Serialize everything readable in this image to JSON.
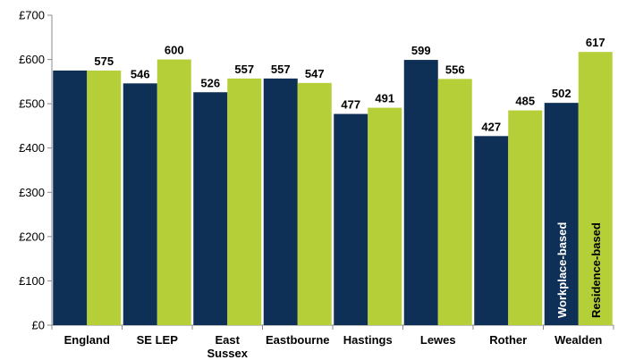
{
  "chart_data": {
    "type": "bar",
    "categories": [
      "England",
      "SE LEP",
      "East Sussex",
      "Eastbourne",
      "Hastings",
      "Lewes",
      "Rother",
      "Wealden"
    ],
    "category_lines": [
      [
        "England"
      ],
      [
        "SE LEP"
      ],
      [
        "East",
        "Sussex"
      ],
      [
        "Eastbourne"
      ],
      [
        "Hastings"
      ],
      [
        "Lewes"
      ],
      [
        "Rother"
      ],
      [
        "Wealden"
      ]
    ],
    "series": [
      {
        "name": "Workplace-based",
        "color": "#0e2f56",
        "values": [
          575,
          546,
          526,
          557,
          477,
          599,
          427,
          502
        ]
      },
      {
        "name": "Residence-based",
        "color": "#b5cf39",
        "values": [
          575,
          600,
          557,
          547,
          491,
          556,
          485,
          617
        ]
      }
    ],
    "data_labels": [
      [
        "",
        "546",
        "526",
        "557",
        "477",
        "599",
        "427",
        "502"
      ],
      [
        "575",
        "600",
        "557",
        "547",
        "491",
        "556",
        "485",
        "617"
      ]
    ],
    "ylim": [
      0,
      700
    ],
    "yticks": [
      0,
      100,
      200,
      300,
      400,
      500,
      600,
      700
    ],
    "ytick_labels": [
      "£0",
      "£100",
      "£200",
      "£300",
      "£400",
      "£500",
      "£600",
      "£700"
    ],
    "title": "",
    "xlabel": "",
    "ylabel": "",
    "grid": false,
    "legend": "inside-last-category-bars"
  }
}
